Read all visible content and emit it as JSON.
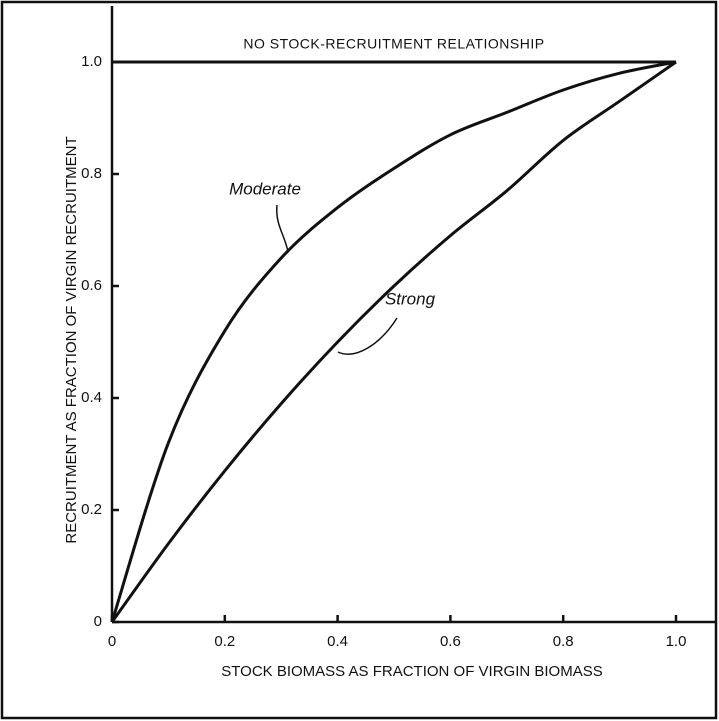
{
  "chart_data": {
    "type": "line",
    "xlabel": "STOCK  BIOMASS AS FRACTION  OF  VIRGIN  BIOMASS",
    "ylabel": "RECRUITMENT  AS  FRACTION OF VIRGIN RECRUITMENT",
    "series": [
      {
        "name": "NO STOCK-RECRUITMENT RELATIONSHIP",
        "color": "#111111",
        "x": [
          0,
          1
        ],
        "values": [
          1,
          1
        ]
      },
      {
        "name": "Moderate",
        "color": "#111111",
        "x": [
          0,
          0.1,
          0.2,
          0.3,
          0.4,
          0.5,
          0.6,
          0.7,
          0.8,
          0.9,
          1
        ],
        "values": [
          0,
          0.32,
          0.52,
          0.65,
          0.74,
          0.81,
          0.87,
          0.91,
          0.95,
          0.98,
          1
        ]
      },
      {
        "name": "Strong",
        "color": "#111111",
        "x": [
          0,
          0.1,
          0.2,
          0.3,
          0.4,
          0.5,
          0.6,
          0.7,
          0.8,
          0.9,
          1
        ],
        "values": [
          0,
          0.14,
          0.27,
          0.39,
          0.5,
          0.6,
          0.69,
          0.77,
          0.86,
          0.93,
          1
        ]
      }
    ],
    "xlim": [
      0,
      1.07
    ],
    "ylim": [
      0,
      1.1
    ],
    "xticks": [
      0,
      0.2,
      0.4,
      0.6,
      0.8,
      {
        "value": 1,
        "label": "1.0"
      }
    ],
    "yticks": [
      0,
      0.2,
      0.4,
      0.6,
      0.8,
      {
        "value": 1,
        "label": "1.0"
      }
    ],
    "grid": false
  }
}
